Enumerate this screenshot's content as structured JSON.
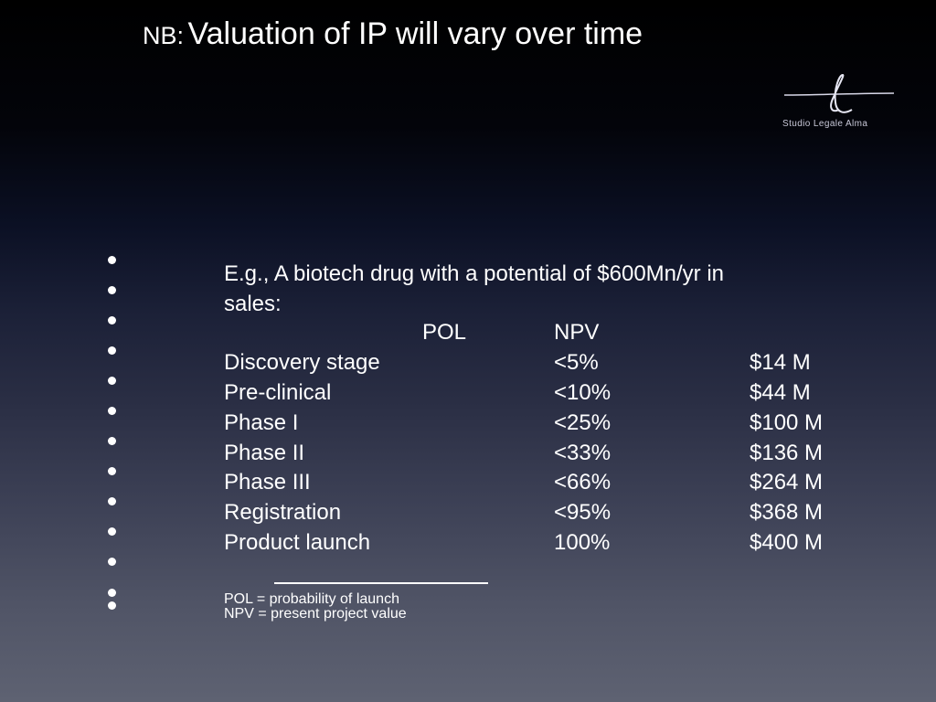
{
  "title": {
    "prefix": "NB:",
    "main": "Valuation of IP will vary over time"
  },
  "logo": {
    "text": "Studio Legale Alma",
    "icon": "stylized-letter-l-logo"
  },
  "intro": {
    "line1": "E.g., A biotech drug with a potential of $600Mn/yr in",
    "line2": "sales:"
  },
  "table": {
    "headers": {
      "pol": "POL",
      "npv": "NPV"
    },
    "rows": [
      {
        "stage": "Discovery stage",
        "npv": "<5%",
        "value": "$14 M"
      },
      {
        "stage": "Pre-clinical",
        "npv": "<10%",
        "value": "$44 M"
      },
      {
        "stage": "Phase I",
        "npv": "<25%",
        "value": "$100 M"
      },
      {
        "stage": "Phase II",
        "npv": "<33%",
        "value": "$136 M"
      },
      {
        "stage": "Phase III",
        "npv": "<66%",
        "value": "$264 M"
      },
      {
        "stage": "Registration",
        "npv": "<95%",
        "value": "$368 M"
      },
      {
        "stage": "Product launch",
        "npv": "100%",
        "value": "$400 M"
      }
    ]
  },
  "notes": {
    "pol": "POL = probability of launch",
    "npv": "NPV = present project value"
  }
}
